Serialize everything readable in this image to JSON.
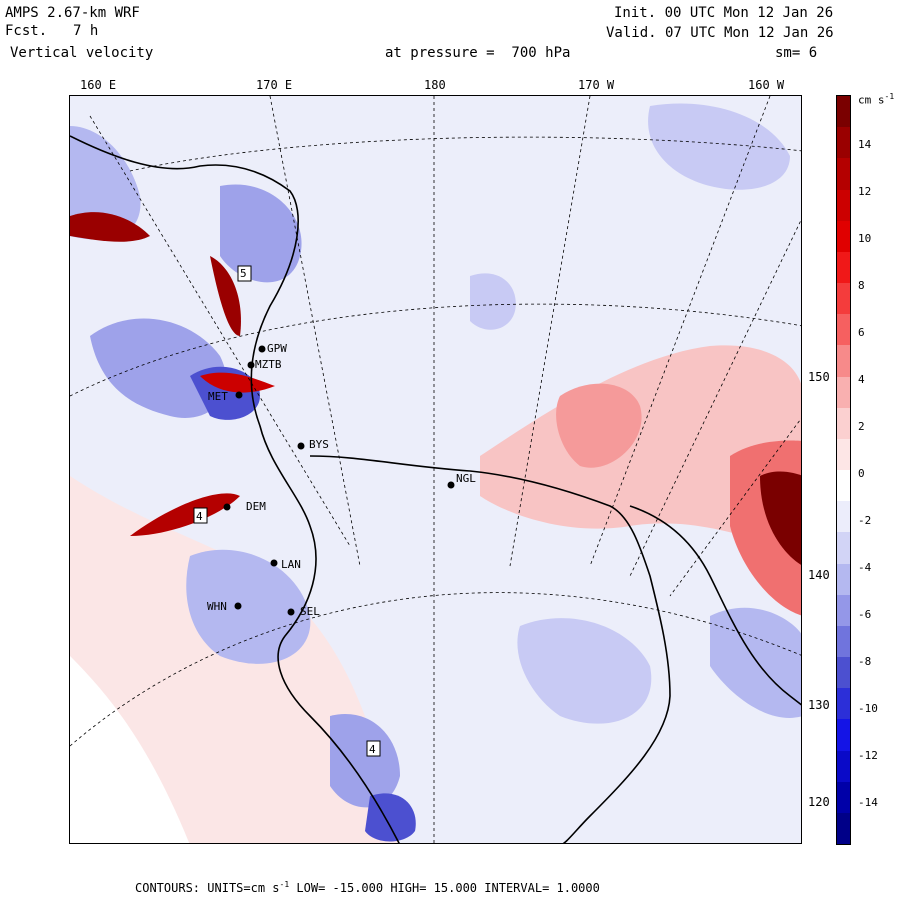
{
  "header": {
    "model": "AMPS 2.67-km WRF",
    "forecast_label": "Fcst.",
    "forecast_value": "7 h",
    "field": "Vertical velocity",
    "init": "Init. 00 UTC Mon 12 Jan 26",
    "valid": "Valid. 07 UTC Mon 12 Jan 26",
    "pressure_text": "at pressure =  700 hPa",
    "smooth": "sm= 6"
  },
  "longitude_labels": [
    "160 E",
    "170 E",
    "180",
    "170 W",
    "160 W"
  ],
  "latitude_labels": [
    "150 W",
    "140 W",
    "130 W",
    "120 W"
  ],
  "stations": [
    {
      "name": "GPW",
      "kind": "label"
    },
    {
      "name": "MZTB",
      "kind": "label"
    },
    {
      "name": "MET",
      "kind": "label"
    },
    {
      "name": "BYS",
      "kind": "label"
    },
    {
      "name": "NGL",
      "kind": "label"
    },
    {
      "name": "DEM",
      "kind": "label"
    },
    {
      "name": "LAN",
      "kind": "label"
    },
    {
      "name": "WHN",
      "kind": "label"
    },
    {
      "name": "SEL",
      "kind": "label"
    }
  ],
  "boxes": [
    "4",
    "4",
    "5"
  ],
  "colorbar": {
    "unit": "cm s",
    "unit_exp": "-1",
    "labels": [
      "14",
      "12",
      "10",
      "8",
      "6",
      "4",
      "2",
      "0",
      "-2",
      "-4",
      "-6",
      "-8",
      "-10",
      "-12",
      "-14"
    ],
    "colors": [
      "#7a0000",
      "#9a0000",
      "#b40000",
      "#cc0000",
      "#e00000",
      "#f01818",
      "#f43c3c",
      "#f66060",
      "#f78a8a",
      "#f9b0b0",
      "#fbd0d0",
      "#fde6e6",
      "#ffffff",
      "#ecedfb",
      "#d2d4f6",
      "#b4b8f0",
      "#9497e8",
      "#7074dd",
      "#4c50d0",
      "#2c2fd8",
      "#1414e6",
      "#0a0ac8",
      "#0000a8",
      "#000088"
    ]
  },
  "footer": {
    "contours_label": "CONTOURS:",
    "units_label": "UNITS=cm s",
    "units_exp": "-1",
    "low": "LOW= -15.000",
    "high": "HIGH=  15.000",
    "interval": "INTERVAL=   1.0000"
  }
}
